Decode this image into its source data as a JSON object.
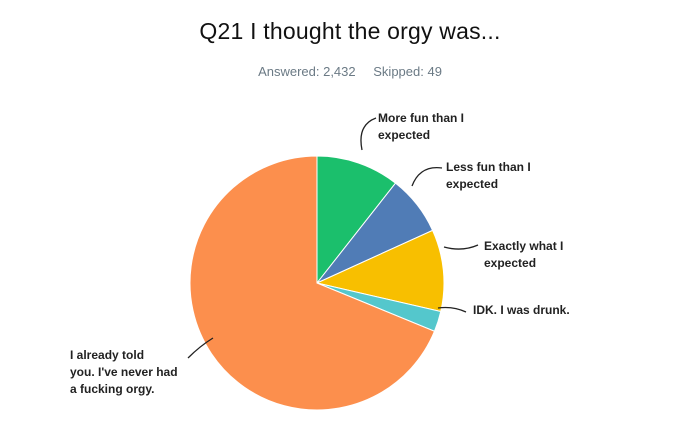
{
  "header": {
    "title": "Q21 I thought the orgy was...",
    "answered": "Answered: 2,432",
    "skipped": "Skipped: 49"
  },
  "chart_data": {
    "type": "pie",
    "title": "Q21 I thought the orgy was...",
    "slices": [
      {
        "label": "More fun than I expected",
        "value": 10.6,
        "color": "#1bbf6c",
        "label_lines": [
          "More fun than I",
          "expected"
        ]
      },
      {
        "label": "Less fun than I expected",
        "value": 7.6,
        "color": "#507cb6",
        "label_lines": [
          "Less fun than I",
          "expected"
        ]
      },
      {
        "label": "Exactly what I expected",
        "value": 10.4,
        "color": "#f8bf00",
        "label_lines": [
          "Exactly what I",
          "expected"
        ]
      },
      {
        "label": "IDK. I was drunk.",
        "value": 2.6,
        "color": "#54c7cc",
        "label_lines": [
          "IDK. I was drunk."
        ]
      },
      {
        "label": "I already told you. I've never had a fucking orgy.",
        "value": 68.8,
        "color": "#fc8f4d",
        "label_lines": [
          "I already told",
          "you. I've never had",
          "a fucking orgy."
        ]
      }
    ],
    "legend": "none",
    "start_angle": "12 o'clock, clockwise"
  }
}
